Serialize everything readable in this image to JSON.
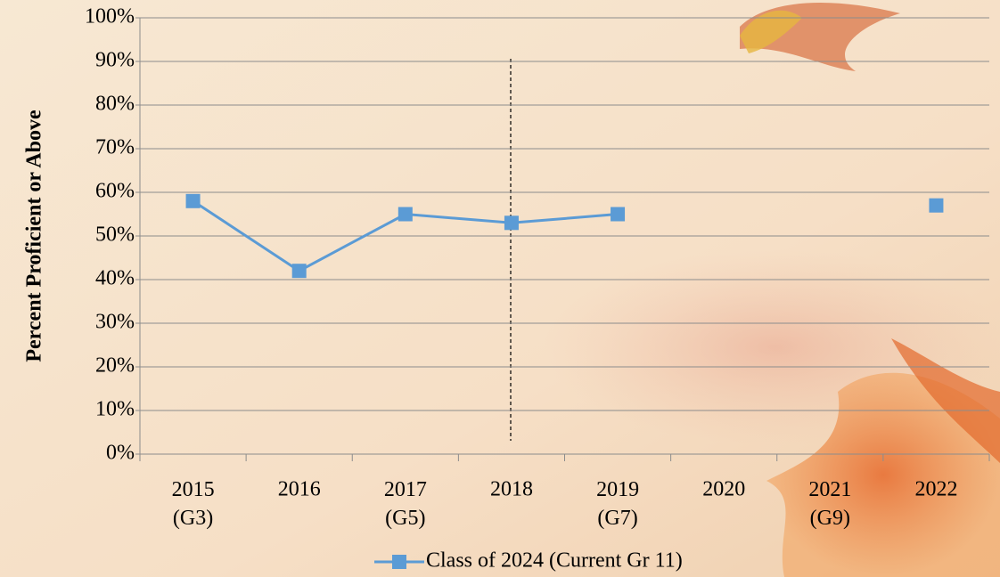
{
  "chart_data": {
    "type": "line",
    "y_label": "Percent Proficient or Above",
    "categories": [
      "2015\n(G3)",
      "2016",
      "2017\n(G5)",
      "2018",
      "2019\n(G7)",
      "2020",
      "2021\n(G9)",
      "2022"
    ],
    "series": [
      {
        "name": "Class of 2024 (Current Gr 11)",
        "color": "#5b9bd5",
        "values": [
          58,
          42,
          55,
          53,
          55,
          null,
          null,
          57
        ]
      }
    ],
    "ylim": [
      0,
      100
    ],
    "yticks": [
      {
        "value": 0,
        "label": "0%"
      },
      {
        "value": 10,
        "label": "10%"
      },
      {
        "value": 20,
        "label": "20%"
      },
      {
        "value": 30,
        "label": "30%"
      },
      {
        "value": 40,
        "label": "40%"
      },
      {
        "value": 50,
        "label": "50%"
      },
      {
        "value": 60,
        "label": "60%"
      },
      {
        "value": 70,
        "label": "70%"
      },
      {
        "value": 80,
        "label": "80%"
      },
      {
        "value": 90,
        "label": "90%"
      },
      {
        "value": 100,
        "label": "100%"
      }
    ],
    "grid": true,
    "legend": "bottom"
  }
}
